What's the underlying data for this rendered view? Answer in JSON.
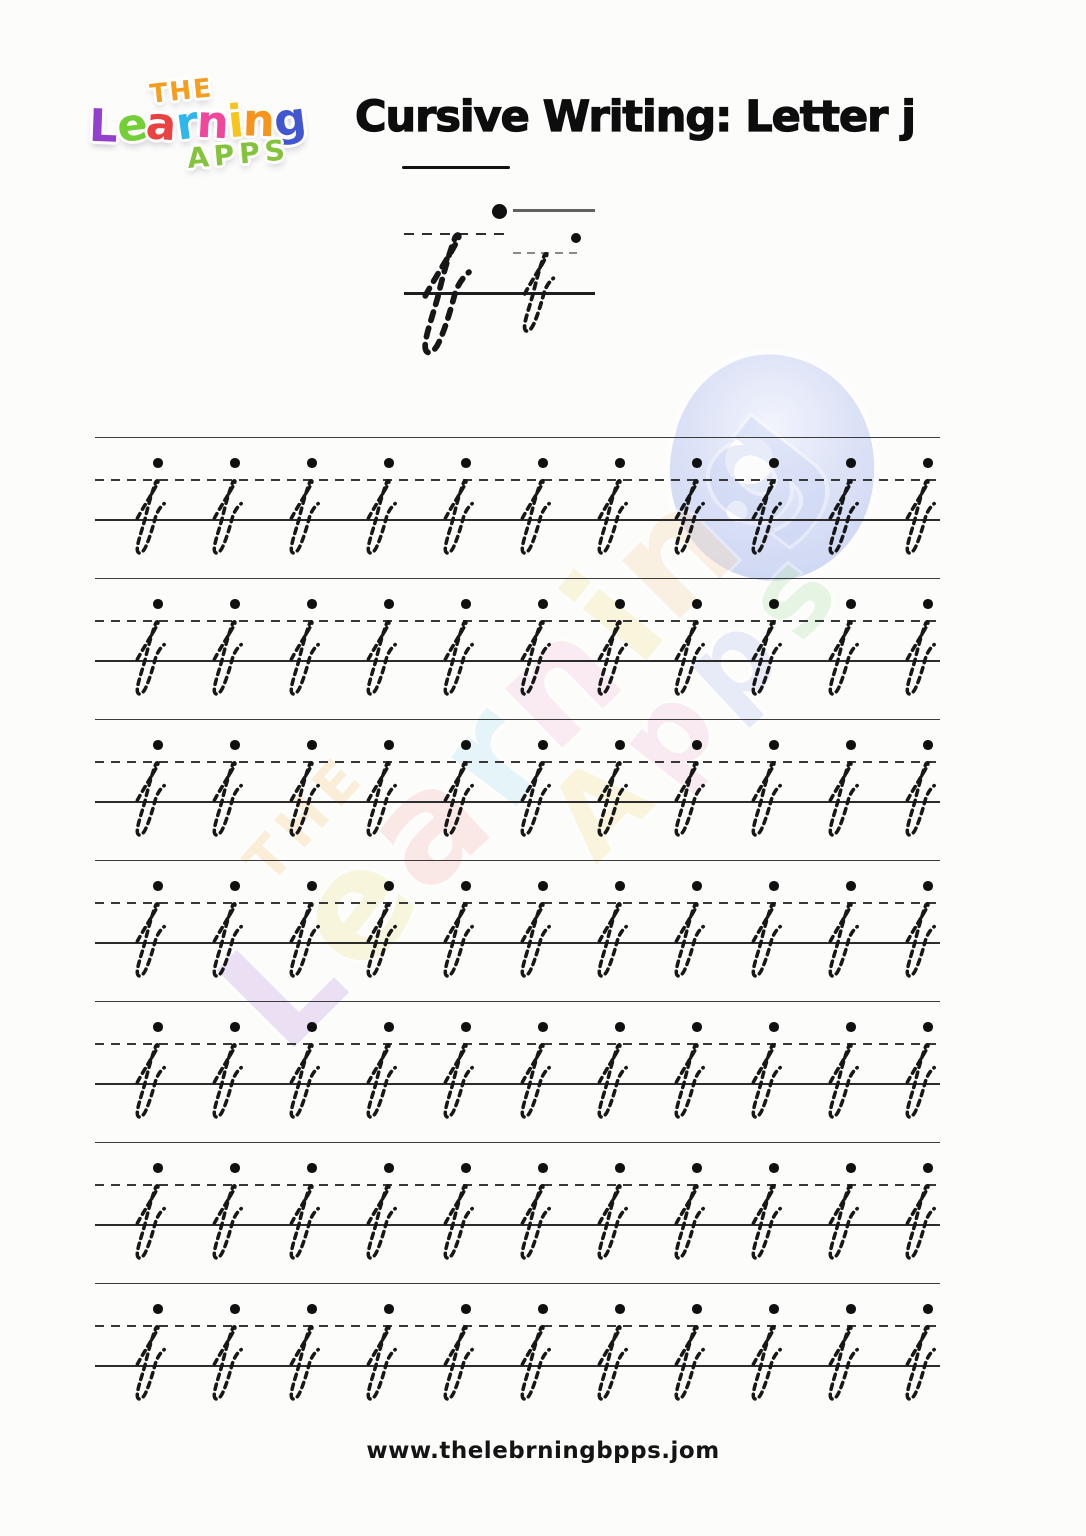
{
  "logo": {
    "word_top": "THE",
    "top_color": "#f69d1d",
    "word_main_letters": [
      {
        "ch": "L",
        "color": "#9340cf"
      },
      {
        "ch": "e",
        "color": "#72cf35"
      },
      {
        "ch": "a",
        "color": "#ea4141"
      },
      {
        "ch": "r",
        "color": "#2fb6ea"
      },
      {
        "ch": "n",
        "color": "#f0479c"
      },
      {
        "ch": "i",
        "color": "#f8c51d"
      },
      {
        "ch": "n",
        "color": "#f5951d"
      },
      {
        "ch": "g",
        "color": "#4156cf"
      }
    ],
    "word_bottom": "APPS",
    "bottom_color": "#84c43d"
  },
  "header": {
    "title": "Cursive Writing: Letter j"
  },
  "demo": {
    "letter": "j",
    "variants": [
      "large",
      "small"
    ],
    "trace_style": "dashed",
    "start_dot_color": "#101010"
  },
  "practice": {
    "letter": "j",
    "rows": 7,
    "letters_per_row": 11,
    "trace_style": "dashed",
    "line_color": "#3b3b3b",
    "glyph_color": "#171717"
  },
  "watermark": {
    "word_top": "THE",
    "top_color": "#f7d9a0",
    "learning_letters": [
      {
        "ch": "L",
        "color": "#cdb1e8"
      },
      {
        "ch": "e",
        "color": "#f2ecae"
      },
      {
        "ch": "a",
        "color": "#f6c9c4"
      },
      {
        "ch": "r",
        "color": "#c2e9f4"
      },
      {
        "ch": "n",
        "color": "#f8cde4"
      },
      {
        "ch": "i",
        "color": "#f6ecae"
      },
      {
        "ch": "n",
        "color": "#f8ddba"
      },
      {
        "ch": "g",
        "color": "#c9d3f4"
      }
    ],
    "apps_letters": [
      {
        "ch": "A",
        "color": "#f6e9a8"
      },
      {
        "ch": "p",
        "color": "#f6cbdf"
      },
      {
        "ch": "p",
        "color": "#c6d0f2"
      },
      {
        "ch": "s",
        "color": "#c4e8c0"
      }
    ]
  },
  "footer": {
    "url": "www.thelebrningbpps.jom"
  }
}
